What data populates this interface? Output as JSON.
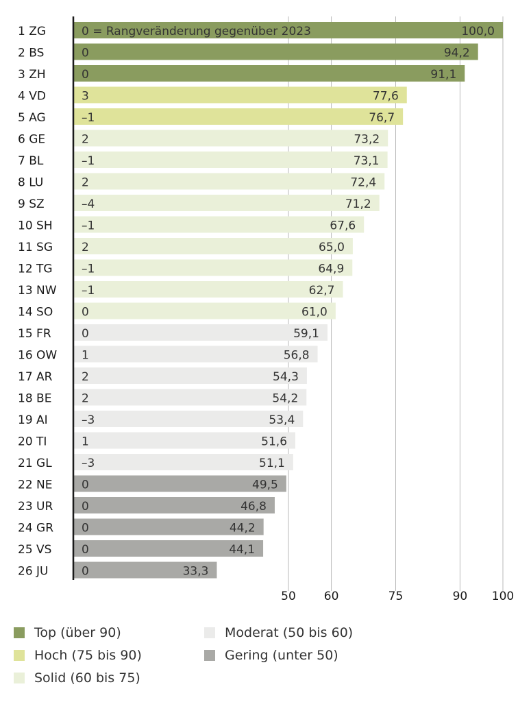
{
  "chart_data": {
    "type": "bar",
    "orientation": "horizontal",
    "note": "0 = Rangveränderung gegenüber 2023",
    "categories": [
      "1 ZG",
      "2 BS",
      "3 ZH",
      "4 VD",
      "5 AG",
      "6 GE",
      "7 BL",
      "8 LU",
      "9 SZ",
      "10 SH",
      "11 SG",
      "12 TG",
      "13 NW",
      "14 SO",
      "15 FR",
      "16 OW",
      "17 AR",
      "18 BE",
      "19 AI",
      "20 TI",
      "21 GL",
      "22 NE",
      "23 UR",
      "24 GR",
      "25 VS",
      "26 JU"
    ],
    "values": [
      100.0,
      94.2,
      91.1,
      77.6,
      76.7,
      73.2,
      73.1,
      72.4,
      71.2,
      67.6,
      65.0,
      64.9,
      62.7,
      61.0,
      59.1,
      56.8,
      54.3,
      54.2,
      53.4,
      51.6,
      51.1,
      49.5,
      46.8,
      44.2,
      44.1,
      33.3
    ],
    "value_labels": [
      "100,0",
      "94,2",
      "91,1",
      "77,6",
      "76,7",
      "73,2",
      "73,1",
      "72,4",
      "71,2",
      "67,6",
      "65,0",
      "64,9",
      "62,7",
      "61,0",
      "59,1",
      "56,8",
      "54,3",
      "54,2",
      "53,4",
      "51,6",
      "51,1",
      "49,5",
      "46,8",
      "44,2",
      "44,1",
      "33,3"
    ],
    "rank_change": [
      "0",
      "0",
      "0",
      "3",
      "–1",
      "2",
      "–1",
      "2",
      "–4",
      "–1",
      "2",
      "–1",
      "–1",
      "0",
      "0",
      "1",
      "2",
      "2",
      "–3",
      "1",
      "–3",
      "0",
      "0",
      "0",
      "0",
      "0"
    ],
    "xlim": [
      0,
      100
    ],
    "xticks": [
      50,
      60,
      75,
      90,
      100
    ],
    "xtick_labels": [
      "50",
      "60",
      "75",
      "90",
      "100"
    ],
    "grid": "vertical lines at ticks",
    "legend_position": "bottom",
    "legend": [
      {
        "label": "Top (über 90)",
        "color": "#8a9c5f"
      },
      {
        "label": "Moderat (50 bis 60)",
        "color": "#ebebea"
      },
      {
        "label": "Hoch (75 bis 90)",
        "color": "#dfe39a"
      },
      {
        "label": "Gering (unter 50)",
        "color": "#a9a9a6"
      },
      {
        "label": "Solid (60 bis 75)",
        "color": "#eaf0d9"
      }
    ],
    "category_colors": {
      "top": "#8a9c5f",
      "hoch": "#dfe39a",
      "solid": "#eaf0d9",
      "moderat": "#ebebea",
      "gering": "#a9a9a6"
    }
  }
}
